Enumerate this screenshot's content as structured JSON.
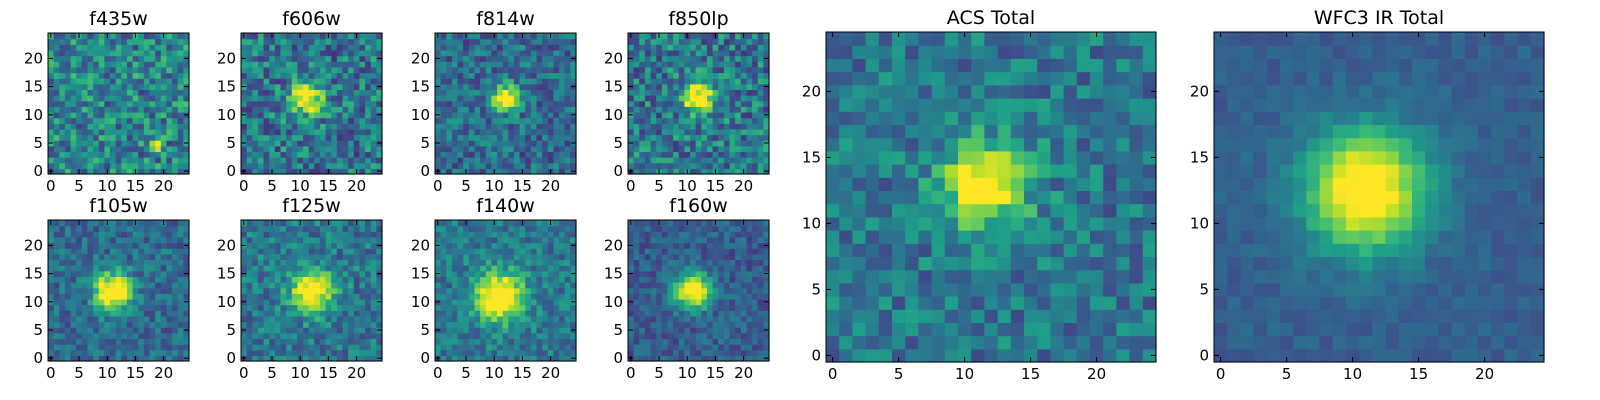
{
  "chart_data": {
    "type": "heatmap",
    "colormap": "viridis",
    "grid": false,
    "panels": [
      {
        "title": "f435w",
        "source_x": 19,
        "source_y": 5,
        "peak": 0.95,
        "sigma": 0.6,
        "background": 0.45,
        "noise": 0.26,
        "xticks": [
          0,
          5,
          10,
          15,
          20
        ],
        "yticks": [
          0,
          5,
          10,
          15,
          20
        ],
        "xlim": [
          0,
          25
        ],
        "ylim": [
          0,
          25
        ]
      },
      {
        "title": "f606w",
        "source_x": 11,
        "source_y": 13,
        "peak": 0.7,
        "sigma": 2.0,
        "background": 0.4,
        "noise": 0.25,
        "xticks": [
          0,
          5,
          10,
          15,
          20
        ],
        "yticks": [
          0,
          5,
          10,
          15,
          20
        ],
        "xlim": [
          0,
          25
        ],
        "ylim": [
          0,
          25
        ]
      },
      {
        "title": "f814w",
        "source_x": 12,
        "source_y": 13,
        "peak": 0.8,
        "sigma": 1.6,
        "background": 0.35,
        "noise": 0.2,
        "xticks": [
          0,
          5,
          10,
          15,
          20
        ],
        "yticks": [
          0,
          5,
          10,
          15,
          20
        ],
        "xlim": [
          0,
          25
        ],
        "ylim": [
          0,
          25
        ]
      },
      {
        "title": "f850lp",
        "source_x": 12,
        "source_y": 13,
        "peak": 0.7,
        "sigma": 2.0,
        "background": 0.4,
        "noise": 0.25,
        "xticks": [
          0,
          5,
          10,
          15,
          20
        ],
        "yticks": [
          0,
          5,
          10,
          15,
          20
        ],
        "xlim": [
          0,
          25
        ],
        "ylim": [
          0,
          25
        ]
      },
      {
        "title": "f105w",
        "source_x": 11,
        "source_y": 12,
        "peak": 0.85,
        "sigma": 2.3,
        "background": 0.35,
        "noise": 0.16,
        "xticks": [
          0,
          5,
          10,
          15,
          20
        ],
        "yticks": [
          0,
          5,
          10,
          15,
          20
        ],
        "xlim": [
          0,
          25
        ],
        "ylim": [
          0,
          25
        ]
      },
      {
        "title": "f125w",
        "source_x": 12,
        "source_y": 12,
        "peak": 0.75,
        "sigma": 2.6,
        "background": 0.4,
        "noise": 0.18,
        "xticks": [
          0,
          5,
          10,
          15,
          20
        ],
        "yticks": [
          0,
          5,
          10,
          15,
          20
        ],
        "xlim": [
          0,
          25
        ],
        "ylim": [
          0,
          25
        ]
      },
      {
        "title": "f140w",
        "source_x": 11,
        "source_y": 11,
        "peak": 0.8,
        "sigma": 3.0,
        "background": 0.4,
        "noise": 0.16,
        "xticks": [
          0,
          5,
          10,
          15,
          20
        ],
        "yticks": [
          0,
          5,
          10,
          15,
          20
        ],
        "xlim": [
          0,
          25
        ],
        "ylim": [
          0,
          25
        ]
      },
      {
        "title": "f160w",
        "source_x": 11,
        "source_y": 12,
        "peak": 0.85,
        "sigma": 2.2,
        "background": 0.3,
        "noise": 0.13,
        "xticks": [
          0,
          5,
          10,
          15,
          20
        ],
        "yticks": [
          0,
          5,
          10,
          15,
          20
        ],
        "xlim": [
          0,
          25
        ],
        "ylim": [
          0,
          25
        ]
      },
      {
        "title": "ACS Total",
        "source_x": 11.5,
        "source_y": 13,
        "peak": 0.75,
        "sigma": 2.2,
        "background": 0.4,
        "noise": 0.18,
        "xticks": [
          0,
          5,
          10,
          15,
          20
        ],
        "yticks": [
          0,
          5,
          10,
          15,
          20
        ],
        "xlim": [
          0,
          25
        ],
        "ylim": [
          0,
          25
        ]
      },
      {
        "title": "WFC3 IR Total",
        "source_x": 11,
        "source_y": 12.5,
        "peak": 0.85,
        "sigma": 3.2,
        "background": 0.3,
        "noise": 0.06,
        "xticks": [
          0,
          5,
          10,
          15,
          20
        ],
        "yticks": [
          0,
          5,
          10,
          15,
          20
        ],
        "xlim": [
          0,
          25
        ],
        "ylim": [
          0,
          25
        ]
      }
    ]
  }
}
